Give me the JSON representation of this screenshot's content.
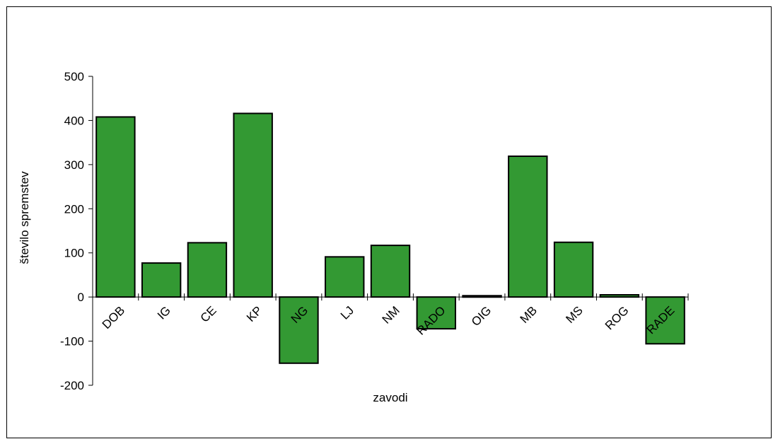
{
  "chart_data": {
    "type": "bar",
    "title": "",
    "xlabel": "zavodi",
    "ylabel": "število spremstev",
    "ylim": [
      -200,
      500
    ],
    "yticks": [
      -200,
      -100,
      0,
      100,
      200,
      300,
      400,
      500
    ],
    "categories": [
      "DOB",
      "IG",
      "CE",
      "KP",
      "NG",
      "LJ",
      "NM",
      "RADO",
      "OIG",
      "MB",
      "MS",
      "ROG",
      "RADE"
    ],
    "values": [
      408,
      77,
      123,
      416,
      -150,
      91,
      117,
      -72,
      3,
      319,
      124,
      5,
      -106
    ],
    "grid": false,
    "legend": "none",
    "colors": {
      "bar_fill": "#339933",
      "bar_stroke": "#000000",
      "axis": "#000000"
    }
  }
}
